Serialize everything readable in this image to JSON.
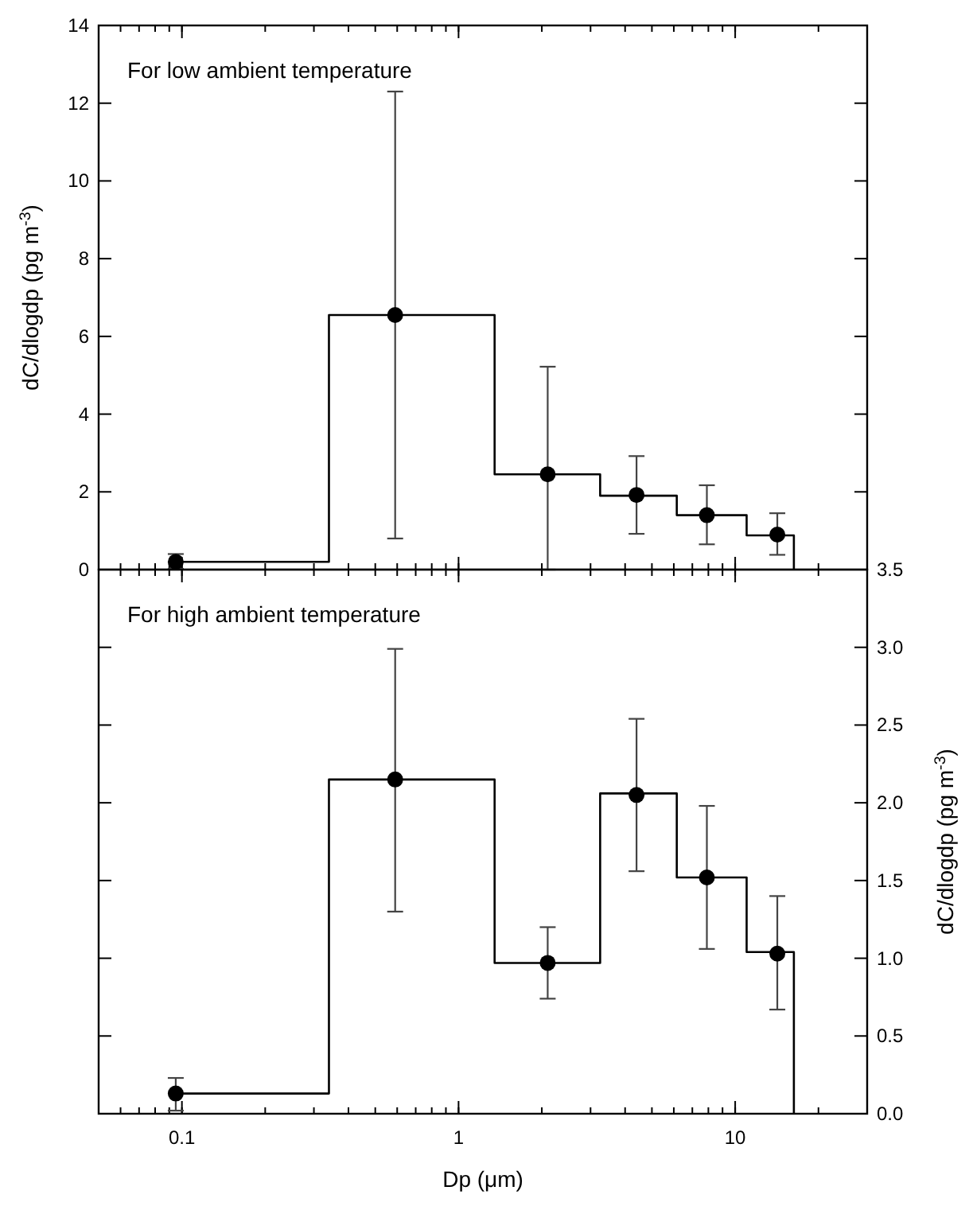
{
  "chart_data": [
    {
      "type": "line",
      "ylabel": "dC/dlogdp (pg m$^{-3}$)",
      "annotations": [
        "For low ambient temperature"
      ],
      "log": "x",
      "xlim": [
        0.05,
        30
      ],
      "xticks": [
        0.1,
        1,
        10
      ],
      "ylim": [
        0,
        14
      ],
      "yticks": [
        0,
        2,
        4,
        6,
        8,
        10,
        12,
        14
      ],
      "tick_labels": "y",
      "grid": false,
      "series": [
        {
          "color": "#000000",
          "marker": "none",
          "line_style": "solid",
          "x": [
            0.095,
            0.34,
            0.34,
            1.35,
            1.35,
            3.25,
            3.25,
            6.15,
            6.15,
            11,
            11,
            16.3,
            16.3
          ],
          "values": [
            0.2,
            0.2,
            6.55,
            6.55,
            2.45,
            2.45,
            1.9,
            1.9,
            1.4,
            1.4,
            0.88,
            0.88,
            0
          ]
        },
        {
          "type": "scatter",
          "color": "#000000",
          "marker": "circle",
          "x": [
            0.095,
            0.59,
            2.1,
            4.4,
            7.9,
            14.2
          ],
          "values": [
            0.2,
            6.55,
            2.45,
            1.92,
            1.4,
            0.9
          ],
          "errors": [
            [
              0.02,
              0.4
            ],
            [
              0.8,
              12.3
            ],
            [
              0,
              5.22
            ],
            [
              0.92,
              2.92
            ],
            [
              0.65,
              2.17
            ],
            [
              0.38,
              1.45
            ]
          ]
        }
      ]
    },
    {
      "type": "line",
      "xlabel": "Dp  (μm)",
      "y2label": "dC/dlogdp (pg m$^{-3}$)",
      "annotations": [
        "For high ambient temperature"
      ],
      "log": "x",
      "xlim": [
        0.05,
        30
      ],
      "xticks": [
        0.1,
        1,
        10
      ],
      "y2lim": [
        0,
        3.5
      ],
      "y2ticks": [
        {
          "value": 0,
          "label": "0.0"
        },
        0.5,
        {
          "value": 1,
          "label": "1.0"
        },
        1.5,
        {
          "value": 2,
          "label": "2.0"
        },
        2.5,
        {
          "value": 3,
          "label": "3.0"
        },
        3.5
      ],
      "grid": false,
      "series": [
        {
          "axis": "y2",
          "color": "#000000",
          "marker": "none",
          "line_style": "solid",
          "x": [
            0.095,
            0.34,
            0.34,
            1.35,
            1.35,
            3.25,
            3.25,
            6.15,
            6.15,
            11,
            11,
            16.3,
            16.3
          ],
          "values": [
            0.13,
            0.13,
            2.15,
            2.15,
            0.97,
            0.97,
            2.06,
            2.06,
            1.52,
            1.52,
            1.04,
            1.04,
            0
          ]
        },
        {
          "type": "scatter",
          "axis": "y2",
          "color": "#000000",
          "marker": "circle",
          "x": [
            0.095,
            0.59,
            2.1,
            4.4,
            7.9,
            14.2
          ],
          "values": [
            0.13,
            2.15,
            0.97,
            2.05,
            1.52,
            1.03
          ],
          "errors": [
            [
              0.02,
              0.23
            ],
            [
              1.3,
              2.99
            ],
            [
              0.74,
              1.2
            ],
            [
              1.56,
              2.54
            ],
            [
              1.06,
              1.98
            ],
            [
              0.67,
              1.4
            ]
          ]
        }
      ]
    }
  ]
}
